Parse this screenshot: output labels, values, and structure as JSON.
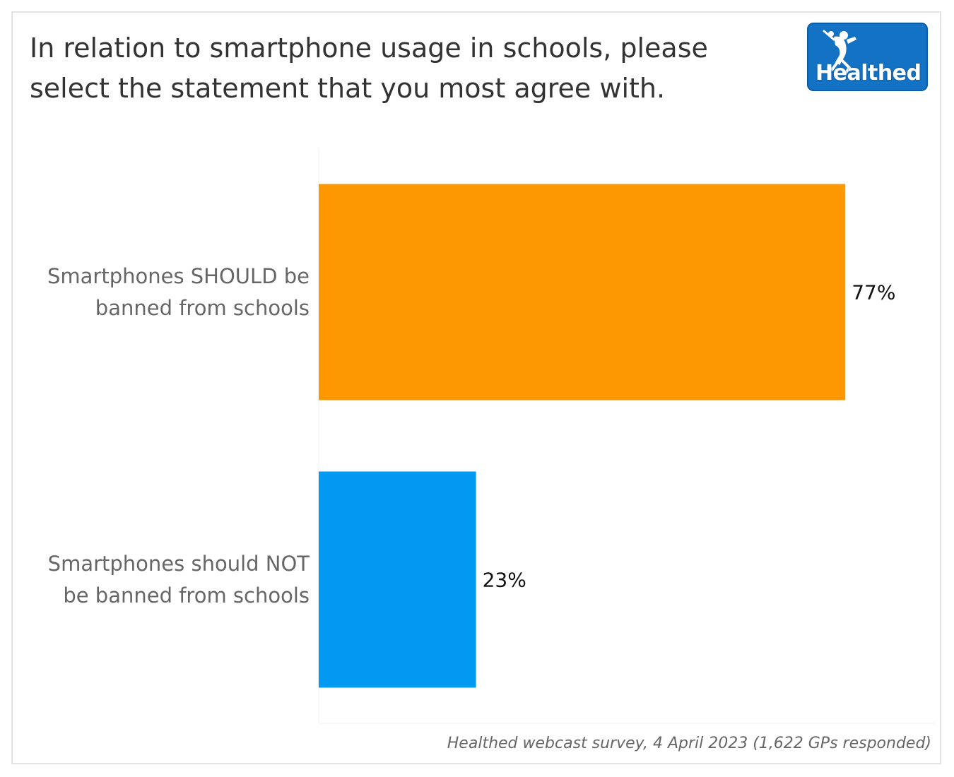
{
  "chart_data": {
    "type": "bar",
    "orientation": "horizontal",
    "title": "In relation to smartphone usage in schools, please select the statement that you most agree with.",
    "categories": [
      "Smartphones SHOULD be banned from schools",
      "Smartphones should NOT be banned from schools"
    ],
    "category_lines": [
      [
        "Smartphones SHOULD be",
        "banned from schools"
      ],
      [
        "Smartphones should NOT",
        "be banned from schools"
      ]
    ],
    "values": [
      77,
      23
    ],
    "data_labels": [
      "77%",
      "23%"
    ],
    "colors": [
      "#fd9800",
      "#0199f1"
    ],
    "xlim": [
      0,
      90
    ],
    "grid": false,
    "legend": "none",
    "source": "Healthed webcast survey, 4 April 2023 (1,622 GPs responded)"
  },
  "logo": {
    "text": "Healthed",
    "icon": "hermes-figure-icon",
    "bg_color": "#1372c4"
  }
}
